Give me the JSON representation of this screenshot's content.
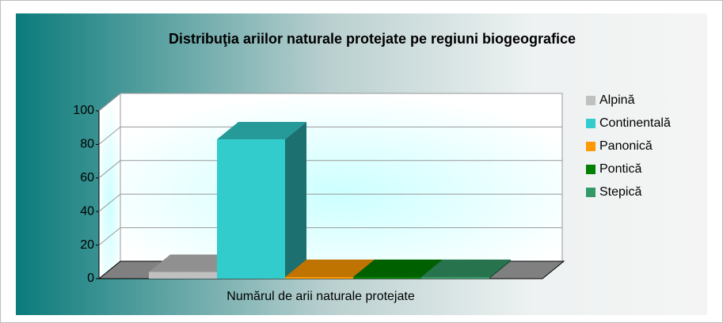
{
  "chart_data": {
    "type": "bar3d",
    "title": "Distribuţia ariilor naturale  protejate pe regiuni biogeografice",
    "categories": [
      "Numărul de arii naturale protejate"
    ],
    "series": [
      {
        "name": "Alpină",
        "color": "#c0c0c0",
        "values": [
          4
        ]
      },
      {
        "name": "Continentală",
        "color": "#33cccc",
        "values": [
          83
        ]
      },
      {
        "name": "Panonică",
        "color": "#ff9900",
        "values": [
          1
        ]
      },
      {
        "name": "Pontică",
        "color": "#008000",
        "values": [
          1
        ]
      },
      {
        "name": "Stepică",
        "color": "#339966",
        "values": [
          1
        ]
      }
    ],
    "ylim": [
      0,
      100
    ],
    "yticks": [
      0,
      20,
      40,
      60,
      80,
      100
    ],
    "grid": true,
    "legend": "right"
  }
}
